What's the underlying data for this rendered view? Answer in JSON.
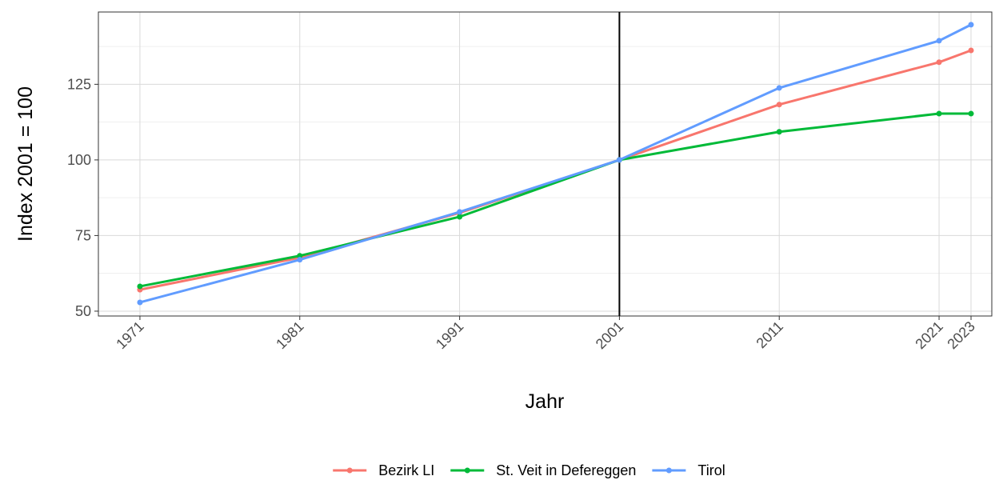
{
  "chart_data": {
    "type": "line",
    "x_label": "Jahr",
    "y_label": "Index 2001 = 100",
    "x": [
      1971,
      1981,
      1991,
      2001,
      2011,
      2021,
      2023
    ],
    "series": [
      {
        "name": "Bezirk LI",
        "color": "#F8766D",
        "values": [
          57.1,
          67.7,
          82.5,
          100,
          118.3,
          132.3,
          136.2
        ]
      },
      {
        "name": "St. Veit in Defereggen",
        "color": "#00BA38",
        "values": [
          58.2,
          68.3,
          81.2,
          100,
          109.3,
          115.3,
          115.3
        ]
      },
      {
        "name": "Tirol",
        "color": "#619CFF",
        "values": [
          52.9,
          67,
          82.8,
          100,
          123.8,
          139.4,
          144.7
        ]
      }
    ],
    "xlim": [
      1968.4,
      2024.3
    ],
    "xticks": [
      1971,
      1981,
      1991,
      2001,
      2011,
      2021,
      2023
    ],
    "ylim": [
      48.4,
      148.9
    ],
    "yticks": [
      50,
      75,
      100,
      125
    ],
    "y_minor_ticks": [
      62.5,
      87.5,
      112.5,
      137.5
    ],
    "vline_x": 2001,
    "grid": true,
    "legend_position": "bottom"
  }
}
